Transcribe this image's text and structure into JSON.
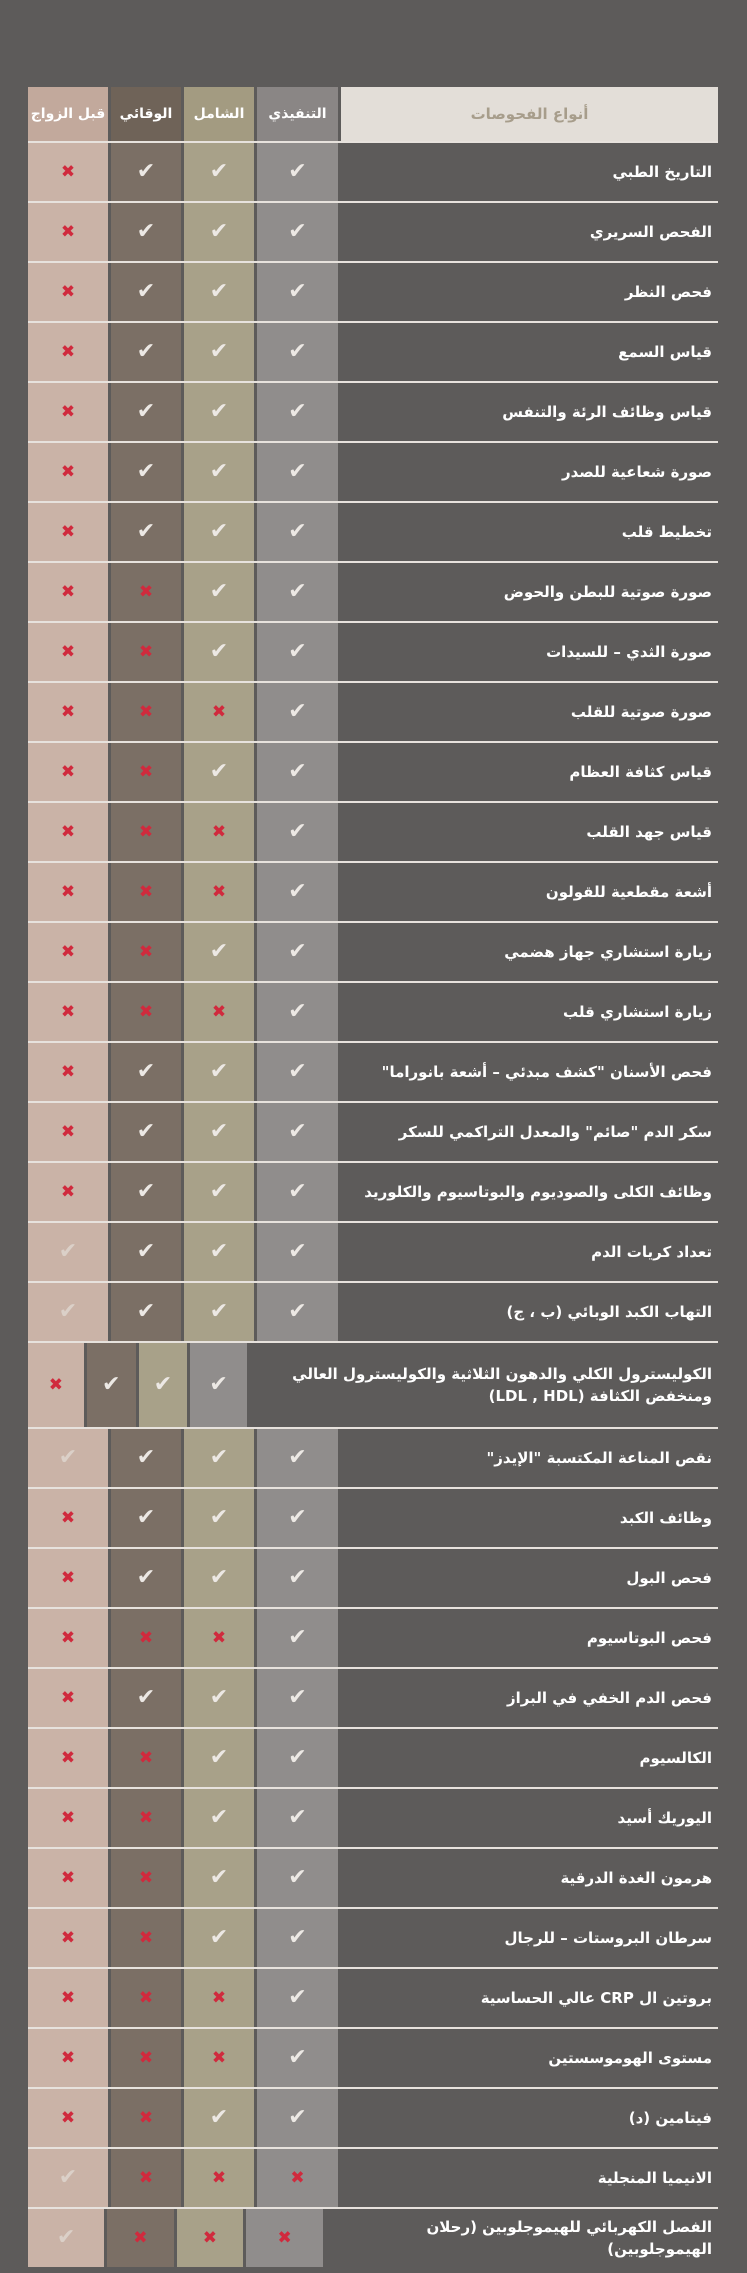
{
  "colors": {
    "page_background": "#5d5b5a",
    "tests_header_bg": "#e3ded8",
    "tests_header_text": "#a79d8b",
    "executive_column": "#908d8c",
    "comprehensive_column": "#a8a189",
    "preventive_column": "#7b6f65",
    "premarriage_column": "#cab3a7",
    "check_mark": "#ece8e4",
    "faint_check_mark": "#dbd0c8",
    "cross_mark": "#d02a3d",
    "row_separator": "#eeeae5",
    "row_text": "#ffffff"
  },
  "icons": {
    "check_glyph": "✔",
    "cross_glyph": "✖"
  },
  "chart_data": {
    "type": "table",
    "direction": "rtl",
    "title": "أنواع الفحوصات",
    "columns": [
      "أنواع الفحوصات",
      "التنفيذي",
      "الشامل",
      "الوقائي",
      "قبل الزواج"
    ],
    "header": {
      "tests_label": "أنواع الفحوصات",
      "packages": [
        "التنفيذي",
        "الشامل",
        "الوقائي",
        "قبل الزواج"
      ]
    },
    "legend_note": "values order per row: التنفيذي, الشامل, الوقائي, قبل الزواج",
    "rows": [
      {
        "name": "التاريخ الطبي",
        "values": [
          "check",
          "check",
          "check",
          "cross"
        ]
      },
      {
        "name": "الفحص السريري",
        "values": [
          "check",
          "check",
          "check",
          "cross"
        ]
      },
      {
        "name": "فحص النظر",
        "values": [
          "check",
          "check",
          "check",
          "cross"
        ]
      },
      {
        "name": "قياس السمع",
        "values": [
          "check",
          "check",
          "check",
          "cross"
        ]
      },
      {
        "name": "قياس وظائف الرئة والتنفس",
        "values": [
          "check",
          "check",
          "check",
          "cross"
        ]
      },
      {
        "name": "صورة شعاعية للصدر",
        "values": [
          "check",
          "check",
          "check",
          "cross"
        ]
      },
      {
        "name": "تخطيط قلب",
        "values": [
          "check",
          "check",
          "check",
          "cross"
        ]
      },
      {
        "name": "صورة صوتية للبطن والحوض",
        "values": [
          "check",
          "check",
          "cross",
          "cross"
        ]
      },
      {
        "name": "صورة الثدي – للسيدات",
        "values": [
          "check",
          "check",
          "cross",
          "cross"
        ]
      },
      {
        "name": "صورة صوتية للقلب",
        "values": [
          "check",
          "cross",
          "cross",
          "cross"
        ]
      },
      {
        "name": "قياس كثافة العظام",
        "values": [
          "check",
          "check",
          "cross",
          "cross"
        ]
      },
      {
        "name": "قياس جهد القلب",
        "values": [
          "check",
          "cross",
          "cross",
          "cross"
        ]
      },
      {
        "name": "أشعة مقطعية للقولون",
        "values": [
          "check",
          "cross",
          "cross",
          "cross"
        ]
      },
      {
        "name": "زيارة استشاري جهاز هضمي",
        "values": [
          "check",
          "check",
          "cross",
          "cross"
        ]
      },
      {
        "name": "زيارة استشاري قلب",
        "values": [
          "check",
          "cross",
          "cross",
          "cross"
        ]
      },
      {
        "name": "فحص الأسنان \"كشف مبدئي – أشعة بانوراما\"",
        "values": [
          "check",
          "check",
          "check",
          "cross"
        ]
      },
      {
        "name": "سكر الدم \"صائم\" والمعدل التراكمي للسكر",
        "values": [
          "check",
          "check",
          "check",
          "cross"
        ]
      },
      {
        "name": "وظائف الكلى والصوديوم والبوتاسيوم والكلوريد",
        "values": [
          "check",
          "check",
          "check",
          "cross"
        ]
      },
      {
        "name": "تعداد كريات الدم",
        "values": [
          "check",
          "check",
          "check",
          "check"
        ]
      },
      {
        "name": "التهاب الكبد الوبائي (ب ، ج)",
        "values": [
          "check",
          "check",
          "check",
          "check"
        ]
      },
      {
        "name": "الكوليسترول الكلي والدهون الثلاثية والكوليسترول العالي ومنخفض الكثافة (LDL , HDL)",
        "values": [
          "check",
          "check",
          "check",
          "cross"
        ]
      },
      {
        "name": "نقص المناعة المكتسبة \"الإيدز\"",
        "values": [
          "check",
          "check",
          "check",
          "check"
        ]
      },
      {
        "name": "وظائف الكبد",
        "values": [
          "check",
          "check",
          "check",
          "cross"
        ]
      },
      {
        "name": "فحص البول",
        "values": [
          "check",
          "check",
          "check",
          "cross"
        ]
      },
      {
        "name": "فحص البوتاسيوم",
        "values": [
          "check",
          "cross",
          "cross",
          "cross"
        ]
      },
      {
        "name": "فحص الدم الخفي في البراز",
        "values": [
          "check",
          "check",
          "check",
          "cross"
        ]
      },
      {
        "name": "الكالسيوم",
        "values": [
          "check",
          "check",
          "cross",
          "cross"
        ]
      },
      {
        "name": "اليوريك أسيد",
        "values": [
          "check",
          "check",
          "cross",
          "cross"
        ]
      },
      {
        "name": "هرمون الغدة الدرقية",
        "values": [
          "check",
          "check",
          "cross",
          "cross"
        ]
      },
      {
        "name": "سرطان البروستات – للرجال",
        "values": [
          "check",
          "check",
          "cross",
          "cross"
        ]
      },
      {
        "name": "بروتين ال CRP عالي الحساسية",
        "values": [
          "check",
          "cross",
          "cross",
          "cross"
        ]
      },
      {
        "name": "مستوى الهوموسستين",
        "values": [
          "check",
          "cross",
          "cross",
          "cross"
        ]
      },
      {
        "name": "فيتامين (د)",
        "values": [
          "check",
          "check",
          "cross",
          "cross"
        ]
      },
      {
        "name": "الانيميا المنجلية",
        "values": [
          "cross",
          "cross",
          "cross",
          "check"
        ]
      },
      {
        "name": "الفصل الكهربائي للهيموجلوبين (رحلان الهيموجلوبين)",
        "values": [
          "cross",
          "cross",
          "cross",
          "check"
        ]
      }
    ]
  }
}
